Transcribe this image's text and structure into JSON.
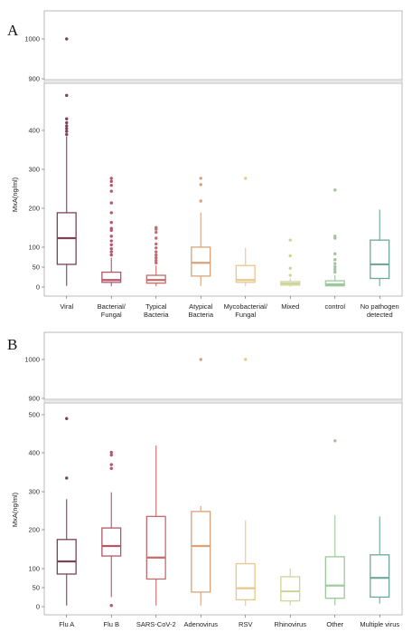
{
  "chart_data": [
    {
      "panel_label": "A",
      "type": "box",
      "ylabel": "MxA(ng/ml)",
      "axis_break": {
        "lower_range": [
          0,
          500
        ],
        "upper_range": [
          900,
          1100
        ]
      },
      "lower_ticks": [
        0,
        50,
        100,
        200,
        300,
        400
      ],
      "upper_ticks": [
        900,
        1000
      ],
      "categories": [
        {
          "label": [
            "Viral"
          ],
          "color": "#7a4358",
          "box": {
            "q1": 58,
            "median": 125,
            "q3": 190,
            "whisker_low": 3,
            "whisker_high": 385
          },
          "outliers": [
            390,
            398,
            405,
            412,
            420,
            430,
            490,
            1000
          ]
        },
        {
          "label": [
            "Bacterial/",
            "Fungal"
          ],
          "color": "#b4576b",
          "box": {
            "q1": 12,
            "median": 18,
            "q3": 38,
            "whisker_low": 2,
            "whisker_high": 75
          },
          "outliers": [
            82,
            90,
            98,
            108,
            118,
            130,
            145,
            150,
            165,
            190,
            215,
            245,
            260,
            270,
            278
          ]
        },
        {
          "label": [
            "Typical",
            "Bacteria"
          ],
          "color": "#c26c6c",
          "box": {
            "q1": 10,
            "median": 18,
            "q3": 30,
            "whisker_low": 2,
            "whisker_high": 55
          },
          "outliers": [
            62,
            68,
            75,
            82,
            90,
            100,
            110,
            125,
            140,
            148,
            152
          ]
        },
        {
          "label": [
            "Atypical",
            "Bacteria"
          ],
          "color": "#d9a27a",
          "box": {
            "q1": 28,
            "median": 62,
            "q3": 102,
            "whisker_low": 3,
            "whisker_high": 190
          },
          "outliers": [
            220,
            262,
            278
          ]
        },
        {
          "label": [
            "Mycobacterial/",
            "Fungal"
          ],
          "color": "#e6c88e",
          "box": {
            "q1": 12,
            "median": 18,
            "q3": 55,
            "whisker_low": 2,
            "whisker_high": 100
          },
          "outliers": [
            278
          ]
        },
        {
          "label": [
            "Mixed"
          ],
          "color": "#cfd49a",
          "box": {
            "q1": 5,
            "median": 9,
            "q3": 14,
            "whisker_low": 1,
            "whisker_high": 22
          },
          "outliers": [
            30,
            48,
            80,
            120
          ]
        },
        {
          "label": [
            "control"
          ],
          "color": "#9cc79a",
          "box": {
            "q1": 3,
            "median": 7,
            "q3": 16,
            "whisker_low": 1,
            "whisker_high": 30
          },
          "outliers": [
            38,
            45,
            52,
            60,
            70,
            85,
            125,
            130,
            248
          ]
        },
        {
          "label": [
            "No pathogen",
            "detected"
          ],
          "color": "#6fa89a",
          "box": {
            "q1": 22,
            "median": 58,
            "q3": 120,
            "whisker_low": 2,
            "whisker_high": 198
          },
          "outliers": []
        }
      ]
    },
    {
      "panel_label": "B",
      "type": "box",
      "ylabel": "MxA(ng/ml)",
      "axis_break": {
        "lower_range": [
          0,
          500
        ],
        "upper_range": [
          900,
          1100
        ]
      },
      "lower_ticks": [
        0,
        50,
        100,
        200,
        300,
        400,
        500
      ],
      "upper_ticks": [
        900,
        1000
      ],
      "categories": [
        {
          "label": [
            "Flu A"
          ],
          "color": "#7a4358",
          "box": {
            "q1": 85,
            "median": 118,
            "q3": 175,
            "whisker_low": 3,
            "whisker_high": 280
          },
          "outliers": [
            335,
            490
          ]
        },
        {
          "label": [
            "Flu B"
          ],
          "color": "#b4576b",
          "box": {
            "q1": 132,
            "median": 158,
            "q3": 205,
            "whisker_low": 25,
            "whisker_high": 298
          },
          "outliers": [
            360,
            370,
            395,
            402,
            3
          ]
        },
        {
          "label": [
            "SARS-CoV-2"
          ],
          "color": "#c26c6c",
          "box": {
            "q1": 72,
            "median": 128,
            "q3": 235,
            "whisker_low": 3,
            "whisker_high": 420
          },
          "outliers": []
        },
        {
          "label": [
            "Adenovirus"
          ],
          "color": "#d9a27a",
          "box": {
            "q1": 38,
            "median": 158,
            "q3": 248,
            "whisker_low": 3,
            "whisker_high": 262
          },
          "outliers": [
            1000
          ]
        },
        {
          "label": [
            "RSV"
          ],
          "color": "#e6c88e",
          "box": {
            "q1": 18,
            "median": 48,
            "q3": 112,
            "whisker_low": 2,
            "whisker_high": 225
          },
          "outliers": [
            1000
          ]
        },
        {
          "label": [
            "Rhinovirus"
          ],
          "color": "#cfd49a",
          "box": {
            "q1": 15,
            "median": 40,
            "q3": 78,
            "whisker_low": 3,
            "whisker_high": 100
          },
          "outliers": []
        },
        {
          "label": [
            "Other"
          ],
          "color": "#9cc79a",
          "box": {
            "q1": 22,
            "median": 55,
            "q3": 130,
            "whisker_low": 3,
            "whisker_high": 238
          },
          "outliers": [
            432
          ]
        },
        {
          "label": [
            "Multiple virus"
          ],
          "color": "#6fa89a",
          "box": {
            "q1": 25,
            "median": 75,
            "q3": 135,
            "whisker_low": 8,
            "whisker_high": 235
          },
          "outliers": []
        }
      ]
    }
  ]
}
